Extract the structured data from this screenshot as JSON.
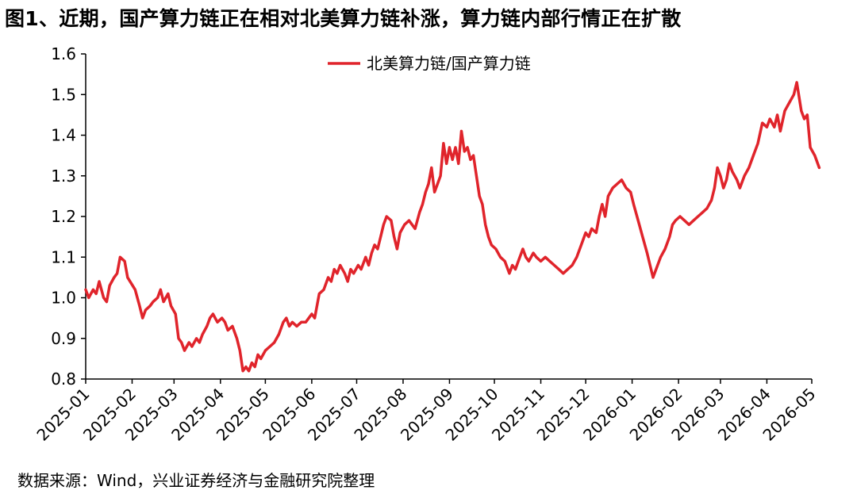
{
  "title": "图1、近期，国产算力链正在相对北美算力链补涨，算力链内部行情正在扩散",
  "source": "数据来源：Wind，兴业证券经济与金融研究院整理",
  "colors": {
    "series": "#e0242b",
    "axis": "#000000"
  },
  "chart_data": {
    "type": "line",
    "title": "",
    "xlabel": "",
    "ylabel": "",
    "ylim": [
      0.8,
      1.6
    ],
    "yticks": [
      "0.8",
      "0.9",
      "1.0",
      "1.1",
      "1.2",
      "1.3",
      "1.4",
      "1.5",
      "1.6"
    ],
    "xticks": [
      "2025-01",
      "2025-02",
      "2025-03",
      "2025-04",
      "2025-05",
      "2025-06",
      "2025-07",
      "2025-08",
      "2025-09",
      "2025-10",
      "2025-11",
      "2025-12",
      "2026-01",
      "2026-02",
      "2026-03",
      "2026-04",
      "2026-05"
    ],
    "grid": false,
    "legend_position": "top-center",
    "series": [
      {
        "name": "北美算力链/国产算力链",
        "color": "#e0242b",
        "points": [
          [
            "2025-01-01",
            1.02
          ],
          [
            "2025-01-03",
            1.0
          ],
          [
            "2025-01-06",
            1.02
          ],
          [
            "2025-01-08",
            1.01
          ],
          [
            "2025-01-10",
            1.04
          ],
          [
            "2025-01-13",
            1.0
          ],
          [
            "2025-01-15",
            0.99
          ],
          [
            "2025-01-17",
            1.03
          ],
          [
            "2025-01-20",
            1.05
          ],
          [
            "2025-01-22",
            1.06
          ],
          [
            "2025-01-24",
            1.1
          ],
          [
            "2025-01-27",
            1.09
          ],
          [
            "2025-01-29",
            1.05
          ],
          [
            "2025-02-03",
            1.02
          ],
          [
            "2025-02-06",
            0.98
          ],
          [
            "2025-02-08",
            0.95
          ],
          [
            "2025-02-10",
            0.97
          ],
          [
            "2025-02-13",
            0.98
          ],
          [
            "2025-02-15",
            0.99
          ],
          [
            "2025-02-18",
            1.0
          ],
          [
            "2025-02-20",
            1.02
          ],
          [
            "2025-02-22",
            0.99
          ],
          [
            "2025-02-25",
            1.01
          ],
          [
            "2025-02-27",
            0.98
          ],
          [
            "2025-03-02",
            0.96
          ],
          [
            "2025-03-04",
            0.9
          ],
          [
            "2025-03-06",
            0.89
          ],
          [
            "2025-03-08",
            0.87
          ],
          [
            "2025-03-11",
            0.89
          ],
          [
            "2025-03-13",
            0.88
          ],
          [
            "2025-03-16",
            0.9
          ],
          [
            "2025-03-18",
            0.89
          ],
          [
            "2025-03-20",
            0.91
          ],
          [
            "2025-03-23",
            0.93
          ],
          [
            "2025-03-25",
            0.95
          ],
          [
            "2025-03-27",
            0.96
          ],
          [
            "2025-03-30",
            0.94
          ],
          [
            "2025-04-02",
            0.95
          ],
          [
            "2025-04-04",
            0.94
          ],
          [
            "2025-04-06",
            0.92
          ],
          [
            "2025-04-09",
            0.93
          ],
          [
            "2025-04-12",
            0.9
          ],
          [
            "2025-04-14",
            0.87
          ],
          [
            "2025-04-16",
            0.82
          ],
          [
            "2025-04-18",
            0.83
          ],
          [
            "2025-04-20",
            0.82
          ],
          [
            "2025-04-22",
            0.84
          ],
          [
            "2025-04-24",
            0.83
          ],
          [
            "2025-04-26",
            0.86
          ],
          [
            "2025-04-28",
            0.85
          ],
          [
            "2025-05-01",
            0.87
          ],
          [
            "2025-05-04",
            0.88
          ],
          [
            "2025-05-07",
            0.89
          ],
          [
            "2025-05-10",
            0.91
          ],
          [
            "2025-05-13",
            0.94
          ],
          [
            "2025-05-15",
            0.95
          ],
          [
            "2025-05-17",
            0.93
          ],
          [
            "2025-05-19",
            0.94
          ],
          [
            "2025-05-22",
            0.93
          ],
          [
            "2025-05-25",
            0.94
          ],
          [
            "2025-05-28",
            0.94
          ],
          [
            "2025-06-01",
            0.96
          ],
          [
            "2025-06-03",
            0.95
          ],
          [
            "2025-06-06",
            1.01
          ],
          [
            "2025-06-09",
            1.02
          ],
          [
            "2025-06-12",
            1.05
          ],
          [
            "2025-06-14",
            1.04
          ],
          [
            "2025-06-16",
            1.07
          ],
          [
            "2025-06-18",
            1.06
          ],
          [
            "2025-06-20",
            1.08
          ],
          [
            "2025-06-23",
            1.06
          ],
          [
            "2025-06-25",
            1.04
          ],
          [
            "2025-06-27",
            1.07
          ],
          [
            "2025-06-29",
            1.06
          ],
          [
            "2025-07-02",
            1.08
          ],
          [
            "2025-07-04",
            1.07
          ],
          [
            "2025-07-07",
            1.1
          ],
          [
            "2025-07-09",
            1.08
          ],
          [
            "2025-07-11",
            1.11
          ],
          [
            "2025-07-13",
            1.13
          ],
          [
            "2025-07-15",
            1.12
          ],
          [
            "2025-07-17",
            1.15
          ],
          [
            "2025-07-19",
            1.18
          ],
          [
            "2025-07-21",
            1.2
          ],
          [
            "2025-07-24",
            1.19
          ],
          [
            "2025-07-26",
            1.15
          ],
          [
            "2025-07-28",
            1.12
          ],
          [
            "2025-07-30",
            1.16
          ],
          [
            "2025-08-02",
            1.18
          ],
          [
            "2025-08-05",
            1.19
          ],
          [
            "2025-08-07",
            1.18
          ],
          [
            "2025-08-09",
            1.17
          ],
          [
            "2025-08-12",
            1.21
          ],
          [
            "2025-08-14",
            1.23
          ],
          [
            "2025-08-16",
            1.26
          ],
          [
            "2025-08-18",
            1.28
          ],
          [
            "2025-08-20",
            1.32
          ],
          [
            "2025-08-22",
            1.26
          ],
          [
            "2025-08-24",
            1.28
          ],
          [
            "2025-08-26",
            1.3
          ],
          [
            "2025-08-28",
            1.38
          ],
          [
            "2025-08-30",
            1.33
          ],
          [
            "2025-09-01",
            1.37
          ],
          [
            "2025-09-03",
            1.34
          ],
          [
            "2025-09-05",
            1.37
          ],
          [
            "2025-09-07",
            1.33
          ],
          [
            "2025-09-09",
            1.41
          ],
          [
            "2025-09-11",
            1.36
          ],
          [
            "2025-09-13",
            1.37
          ],
          [
            "2025-09-15",
            1.34
          ],
          [
            "2025-09-17",
            1.35
          ],
          [
            "2025-09-19",
            1.3
          ],
          [
            "2025-09-21",
            1.25
          ],
          [
            "2025-09-23",
            1.23
          ],
          [
            "2025-09-25",
            1.18
          ],
          [
            "2025-09-27",
            1.15
          ],
          [
            "2025-09-29",
            1.13
          ],
          [
            "2025-10-02",
            1.12
          ],
          [
            "2025-10-05",
            1.1
          ],
          [
            "2025-10-08",
            1.09
          ],
          [
            "2025-10-11",
            1.06
          ],
          [
            "2025-10-13",
            1.08
          ],
          [
            "2025-10-15",
            1.07
          ],
          [
            "2025-10-17",
            1.09
          ],
          [
            "2025-10-20",
            1.12
          ],
          [
            "2025-10-22",
            1.1
          ],
          [
            "2025-10-24",
            1.09
          ],
          [
            "2025-10-27",
            1.11
          ],
          [
            "2025-10-29",
            1.1
          ],
          [
            "2025-11-01",
            1.09
          ],
          [
            "2025-11-04",
            1.1
          ],
          [
            "2025-11-07",
            1.09
          ],
          [
            "2025-11-10",
            1.08
          ],
          [
            "2025-11-13",
            1.07
          ],
          [
            "2025-11-16",
            1.06
          ],
          [
            "2025-11-19",
            1.07
          ],
          [
            "2025-11-22",
            1.08
          ],
          [
            "2025-11-25",
            1.1
          ],
          [
            "2025-11-28",
            1.13
          ],
          [
            "2025-12-01",
            1.16
          ],
          [
            "2025-12-03",
            1.15
          ],
          [
            "2025-12-05",
            1.17
          ],
          [
            "2025-12-08",
            1.16
          ],
          [
            "2025-12-10",
            1.2
          ],
          [
            "2025-12-12",
            1.23
          ],
          [
            "2025-12-14",
            1.2
          ],
          [
            "2025-12-16",
            1.25
          ],
          [
            "2025-12-19",
            1.27
          ],
          [
            "2025-12-22",
            1.28
          ],
          [
            "2025-12-25",
            1.29
          ],
          [
            "2025-12-28",
            1.27
          ],
          [
            "2025-12-31",
            1.26
          ],
          [
            "2026-01-02",
            1.23
          ],
          [
            "2026-01-05",
            1.19
          ],
          [
            "2026-01-08",
            1.15
          ],
          [
            "2026-01-11",
            1.11
          ],
          [
            "2026-01-13",
            1.08
          ],
          [
            "2026-01-15",
            1.05
          ],
          [
            "2026-01-17",
            1.07
          ],
          [
            "2026-01-20",
            1.1
          ],
          [
            "2026-01-23",
            1.12
          ],
          [
            "2026-01-26",
            1.15
          ],
          [
            "2026-01-28",
            1.18
          ],
          [
            "2026-01-30",
            1.19
          ],
          [
            "2026-02-02",
            1.2
          ],
          [
            "2026-02-05",
            1.19
          ],
          [
            "2026-02-08",
            1.18
          ],
          [
            "2026-02-11",
            1.19
          ],
          [
            "2026-02-14",
            1.2
          ],
          [
            "2026-02-17",
            1.21
          ],
          [
            "2026-02-20",
            1.22
          ],
          [
            "2026-02-23",
            1.24
          ],
          [
            "2026-02-25",
            1.27
          ],
          [
            "2026-02-27",
            1.32
          ],
          [
            "2026-03-01",
            1.3
          ],
          [
            "2026-03-03",
            1.27
          ],
          [
            "2026-03-05",
            1.29
          ],
          [
            "2026-03-07",
            1.33
          ],
          [
            "2026-03-09",
            1.31
          ],
          [
            "2026-03-12",
            1.29
          ],
          [
            "2026-03-14",
            1.27
          ],
          [
            "2026-03-17",
            1.3
          ],
          [
            "2026-03-20",
            1.32
          ],
          [
            "2026-03-23",
            1.35
          ],
          [
            "2026-03-26",
            1.38
          ],
          [
            "2026-03-29",
            1.43
          ],
          [
            "2026-04-01",
            1.42
          ],
          [
            "2026-04-03",
            1.44
          ],
          [
            "2026-04-06",
            1.42
          ],
          [
            "2026-04-08",
            1.45
          ],
          [
            "2026-04-10",
            1.41
          ],
          [
            "2026-04-13",
            1.46
          ],
          [
            "2026-04-16",
            1.48
          ],
          [
            "2026-04-19",
            1.5
          ],
          [
            "2026-04-21",
            1.53
          ],
          [
            "2026-04-24",
            1.46
          ],
          [
            "2026-04-26",
            1.44
          ],
          [
            "2026-04-28",
            1.45
          ],
          [
            "2026-04-30",
            1.37
          ],
          [
            "2026-05-03",
            1.35
          ],
          [
            "2026-05-06",
            1.32
          ]
        ]
      }
    ]
  }
}
